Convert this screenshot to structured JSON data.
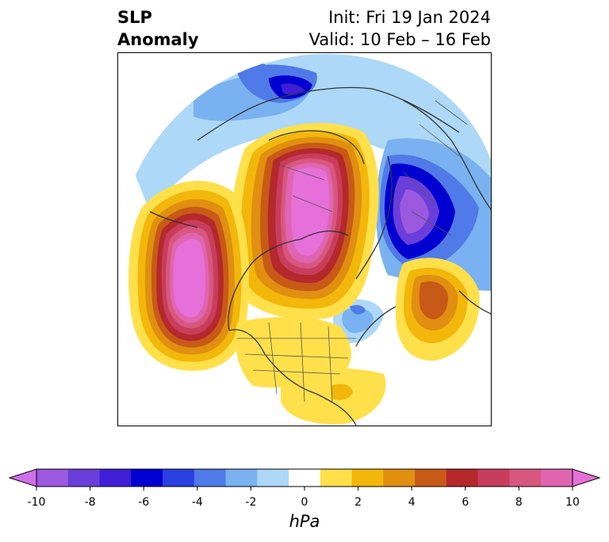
{
  "title": {
    "left_line1": "SLP",
    "left_line2": "Anomaly",
    "right_line1": "Init: Fri 19 Jan 2024",
    "right_line2": "Valid: 10 Feb – 16 Feb"
  },
  "colorbar": {
    "unit": "hPa",
    "ticks": [
      "-10",
      "-8",
      "-6",
      "-4",
      "-2",
      "0",
      "2",
      "4",
      "6",
      "8",
      "10"
    ],
    "colors": [
      "#d070e8",
      "#9b59e0",
      "#6a3ed8",
      "#3f1fd6",
      "#0000d0",
      "#2a3fe0",
      "#4f7ae8",
      "#7ab1f0",
      "#add8f7",
      "#ffffff",
      "#ffe04a",
      "#f2b70a",
      "#e08f10",
      "#c85a17",
      "#b5282c",
      "#c93d5c",
      "#d7577f",
      "#e065b0",
      "#e670da"
    ],
    "extend": "both"
  }
}
